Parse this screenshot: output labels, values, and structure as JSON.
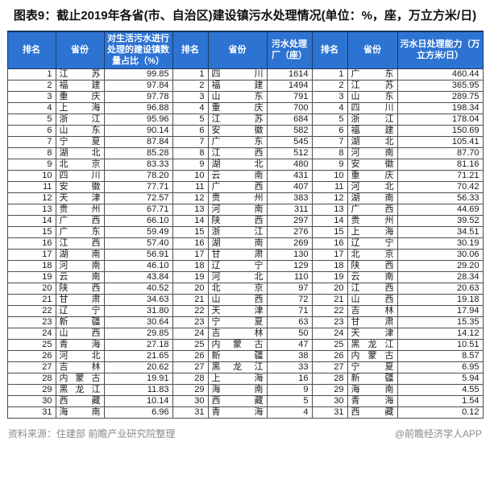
{
  "title": "图表9：截止2019年各省(市、自治区)建设镇污水处理情况(单位：%，座，万立方米/日)",
  "watermark": "前瞻产业研究院",
  "footer": {
    "source": "资料来源：住建部 前瞻产业研究院整理",
    "credit": "@前瞻经济学人APP"
  },
  "colors": {
    "header_bg": "#2d73d2",
    "header_border": "#1b3a66",
    "highlight_blue": "#c8dcf2",
    "highlight_gray": "#d9d9d9"
  },
  "chart_data": {
    "type": "table",
    "title": "图表9：截止2019年各省(市、自治区)建设镇污水处理情况(单位：%，座，万立方米/日)",
    "columns": [
      "排名",
      "省份",
      "对生活污水进行处理的建设镇数量占比（%）",
      "排名",
      "省份",
      "污水处理厂（座）",
      "排名",
      "省份",
      "污水日处理能力（万立方米/日）"
    ],
    "highlights": {
      "江苏": "blue",
      "四川": "blue",
      "广东": "gray"
    },
    "rows": [
      [
        "1",
        "江苏",
        "99.85",
        "1",
        "四川",
        "1614",
        "1",
        "广东",
        "460.44"
      ],
      [
        "2",
        "福建",
        "97.84",
        "2",
        "福建",
        "1494",
        "2",
        "江苏",
        "365.95"
      ],
      [
        "3",
        "重庆",
        "97.78",
        "3",
        "山东",
        "791",
        "3",
        "山东",
        "289.75"
      ],
      [
        "4",
        "上海",
        "96.88",
        "4",
        "重庆",
        "700",
        "4",
        "四川",
        "198.34"
      ],
      [
        "5",
        "浙江",
        "95.96",
        "5",
        "江苏",
        "684",
        "5",
        "浙江",
        "178.04"
      ],
      [
        "6",
        "山东",
        "90.14",
        "6",
        "安徽",
        "582",
        "6",
        "福建",
        "150.69"
      ],
      [
        "7",
        "宁夏",
        "87.84",
        "7",
        "广东",
        "545",
        "7",
        "湖北",
        "105.41"
      ],
      [
        "8",
        "湖北",
        "85.28",
        "8",
        "江西",
        "512",
        "8",
        "河南",
        "87.70"
      ],
      [
        "9",
        "北京",
        "83.33",
        "9",
        "湖北",
        "480",
        "9",
        "安徽",
        "81.16"
      ],
      [
        "10",
        "四川",
        "78.20",
        "10",
        "云南",
        "431",
        "10",
        "重庆",
        "71.21"
      ],
      [
        "11",
        "安徽",
        "77.71",
        "11",
        "广西",
        "407",
        "11",
        "河北",
        "70.42"
      ],
      [
        "12",
        "天津",
        "72.57",
        "12",
        "贵州",
        "383",
        "12",
        "湖南",
        "56.33"
      ],
      [
        "13",
        "贵州",
        "67.71",
        "13",
        "河南",
        "311",
        "13",
        "广西",
        "44.69"
      ],
      [
        "14",
        "广西",
        "66.10",
        "14",
        "陕西",
        "297",
        "14",
        "贵州",
        "39.52"
      ],
      [
        "15",
        "广东",
        "59.49",
        "15",
        "浙江",
        "276",
        "15",
        "上海",
        "34.51"
      ],
      [
        "16",
        "江西",
        "57.40",
        "16",
        "湖南",
        "269",
        "16",
        "辽宁",
        "30.19"
      ],
      [
        "17",
        "湖南",
        "56.91",
        "17",
        "甘肃",
        "130",
        "17",
        "北京",
        "30.06"
      ],
      [
        "18",
        "河南",
        "46.10",
        "18",
        "辽宁",
        "129",
        "18",
        "陕西",
        "29.20"
      ],
      [
        "19",
        "云南",
        "43.84",
        "19",
        "河北",
        "110",
        "19",
        "云南",
        "28.34"
      ],
      [
        "20",
        "陕西",
        "40.52",
        "20",
        "北京",
        "97",
        "20",
        "江西",
        "20.63"
      ],
      [
        "21",
        "甘肃",
        "34.63",
        "21",
        "山西",
        "72",
        "21",
        "山西",
        "19.18"
      ],
      [
        "22",
        "辽宁",
        "31.80",
        "22",
        "天津",
        "71",
        "22",
        "吉林",
        "17.94"
      ],
      [
        "23",
        "新疆",
        "30.64",
        "23",
        "宁夏",
        "63",
        "23",
        "甘肃",
        "15.35"
      ],
      [
        "24",
        "山西",
        "29.85",
        "24",
        "吉林",
        "50",
        "24",
        "天津",
        "14.12"
      ],
      [
        "25",
        "青海",
        "27.18",
        "25",
        "内蒙古",
        "47",
        "25",
        "黑龙江",
        "10.51"
      ],
      [
        "26",
        "河北",
        "21.65",
        "26",
        "新疆",
        "38",
        "26",
        "内蒙古",
        "8.57"
      ],
      [
        "27",
        "吉林",
        "20.62",
        "27",
        "黑龙江",
        "33",
        "27",
        "宁夏",
        "6.95"
      ],
      [
        "28",
        "内蒙古",
        "19.91",
        "28",
        "上海",
        "16",
        "28",
        "新疆",
        "5.94"
      ],
      [
        "29",
        "黑龙江",
        "11.83",
        "29",
        "海南",
        "9",
        "29",
        "海南",
        "4.55"
      ],
      [
        "30",
        "西藏",
        "10.14",
        "30",
        "西藏",
        "5",
        "30",
        "青海",
        "1.54"
      ],
      [
        "31",
        "海南",
        "6.96",
        "31",
        "青海",
        "4",
        "31",
        "西藏",
        "0.12"
      ]
    ]
  }
}
